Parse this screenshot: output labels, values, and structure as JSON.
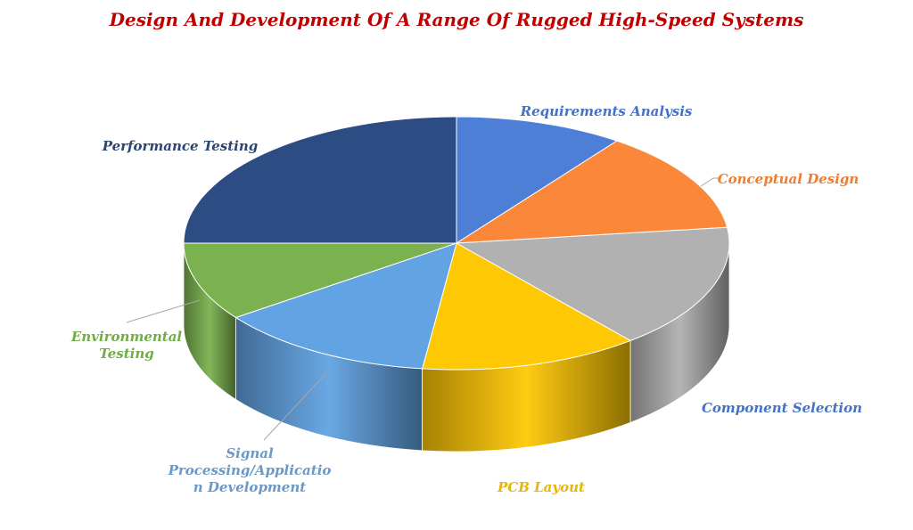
{
  "chart_data": {
    "type": "pie",
    "title": "Design And Development Of A Range Of Rugged High-Speed Systems",
    "categories": [
      "Requirements Analysis",
      "Conceptual Design",
      "Component Selection",
      "PCB Layout",
      "Signal Processing/Application Development",
      "Environmental Testing",
      "Performance Testing"
    ],
    "label_lines": [
      [
        "Requirements Analysis"
      ],
      [
        "Conceptual Design"
      ],
      [
        "Component Selection"
      ],
      [
        "PCB Layout"
      ],
      [
        "Signal",
        "Processing/Applicatio",
        "n Development"
      ],
      [
        "Environmental",
        "Testing"
      ],
      [
        "Performance Testing"
      ]
    ],
    "values": [
      10,
      13,
      16,
      13,
      13,
      10,
      25
    ],
    "colors": [
      "#4e7fd6",
      "#fb873b",
      "#b1b1b1",
      "#ffc805",
      "#62a3e3",
      "#7bb24f",
      "#2d4c84"
    ],
    "label_colors": [
      "#4472c4",
      "#ed7d31",
      "#4472c4",
      "#e5b50a",
      "#6a98c8",
      "#70ad47",
      "#2b4470"
    ],
    "legend": "none"
  }
}
